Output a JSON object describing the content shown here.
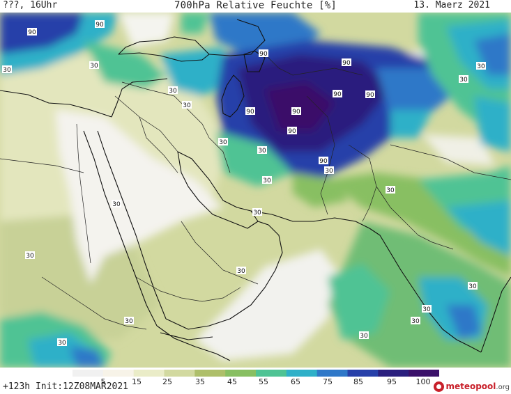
{
  "header": {
    "left": "???, 16Uhr",
    "title": "700hPa Relative Feuchte [%]",
    "date": "13. Maerz 2021"
  },
  "footer": {
    "run": "+123h Init:12Z08MAR2021",
    "logo_main": "meteopool",
    "logo_domain": ".org"
  },
  "legend": {
    "ticks": [
      "5",
      "15",
      "25",
      "35",
      "45",
      "55",
      "65",
      "75",
      "85",
      "95",
      "100"
    ],
    "colors": [
      "#f1f1f1",
      "#f7f3e8",
      "#eaecc8",
      "#d2d9a0",
      "#aebf6a",
      "#88bf62",
      "#4fc394",
      "#2fb0c8",
      "#2f78c8",
      "#2740a9",
      "#2a1f7e",
      "#3a1069"
    ]
  },
  "contour_labels": [
    {
      "text": "90"
    },
    {
      "text": "90"
    },
    {
      "text": "30"
    },
    {
      "text": "30"
    },
    {
      "text": "90"
    },
    {
      "text": "90"
    },
    {
      "text": "90"
    },
    {
      "text": "90"
    },
    {
      "text": "90"
    },
    {
      "text": "90"
    },
    {
      "text": "30"
    },
    {
      "text": "30"
    },
    {
      "text": "90"
    },
    {
      "text": "30"
    },
    {
      "text": "30"
    },
    {
      "text": "30"
    },
    {
      "text": "90"
    },
    {
      "text": "30"
    },
    {
      "text": "30"
    },
    {
      "text": "30"
    },
    {
      "text": "30"
    },
    {
      "text": "30"
    },
    {
      "text": "30"
    },
    {
      "text": "30"
    },
    {
      "text": "30"
    },
    {
      "text": "30"
    },
    {
      "text": "30"
    },
    {
      "text": "30"
    },
    {
      "text": "30"
    },
    {
      "text": "30"
    },
    {
      "text": "30"
    }
  ]
}
